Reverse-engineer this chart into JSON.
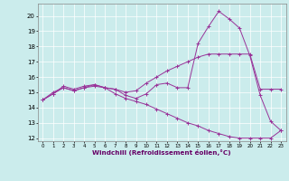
{
  "xlabel": "Windchill (Refroidissement éolien,°C)",
  "x": [
    0,
    1,
    2,
    3,
    4,
    5,
    6,
    7,
    8,
    9,
    10,
    11,
    12,
    13,
    14,
    15,
    16,
    17,
    18,
    19,
    20,
    21,
    22,
    23
  ],
  "line1": [
    14.5,
    14.9,
    15.3,
    15.1,
    15.3,
    15.4,
    15.3,
    15.2,
    14.8,
    14.6,
    14.9,
    15.5,
    15.6,
    15.3,
    15.3,
    18.2,
    19.3,
    20.3,
    19.8,
    19.2,
    17.4,
    14.8,
    13.1,
    12.5
  ],
  "line2": [
    14.5,
    14.9,
    15.4,
    15.2,
    15.4,
    15.5,
    15.3,
    15.2,
    15.0,
    15.1,
    15.6,
    16.0,
    16.4,
    16.7,
    17.0,
    17.3,
    17.5,
    17.5,
    17.5,
    17.5,
    17.5,
    15.2,
    15.2,
    15.2
  ],
  "line3": [
    14.5,
    15.0,
    15.3,
    15.1,
    15.3,
    15.5,
    15.3,
    14.9,
    14.6,
    14.4,
    14.2,
    13.9,
    13.6,
    13.3,
    13.0,
    12.8,
    12.5,
    12.3,
    12.1,
    12.0,
    12.0,
    12.0,
    12.0,
    12.5
  ],
  "color": "#993399",
  "bg_color": "#cbecec",
  "grid_color": "#aad4d4",
  "ylim_min": 11.8,
  "ylim_max": 20.8,
  "yticks": [
    12,
    13,
    14,
    15,
    16,
    17,
    18,
    19,
    20
  ],
  "xticks": [
    0,
    1,
    2,
    3,
    4,
    5,
    6,
    7,
    8,
    9,
    10,
    11,
    12,
    13,
    14,
    15,
    16,
    17,
    18,
    19,
    20,
    21,
    22,
    23
  ]
}
